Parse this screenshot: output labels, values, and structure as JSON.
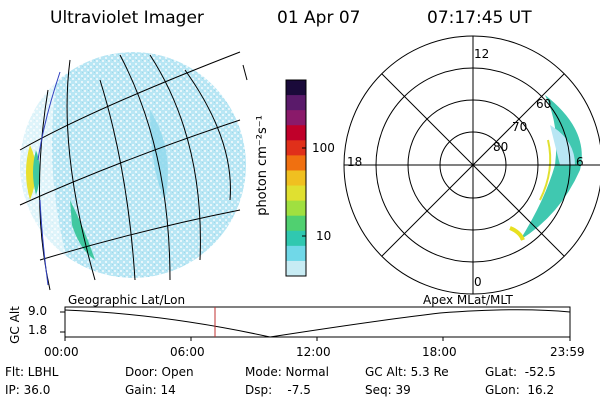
{
  "header": {
    "instrument": "Ultraviolet Imager",
    "date": "01 Apr 07",
    "time": "07:17:45 UT"
  },
  "colorbar": {
    "unit_label": "photon cm⁻²s⁻¹",
    "ticks": [
      "100",
      "10"
    ],
    "colors": [
      "#1a0a3a",
      "#5a1a6a",
      "#8a1a6a",
      "#c0002a",
      "#e0301a",
      "#f07010",
      "#f0c020",
      "#e0e030",
      "#a0e040",
      "#50d070",
      "#30c8b0",
      "#70d8e8",
      "#c8ecf4"
    ]
  },
  "polar": {
    "mlt_labels": {
      "top": "12",
      "left": "18",
      "right": "6",
      "bottom": "0"
    },
    "lat_labels": [
      "80",
      "70",
      "60"
    ]
  },
  "timeline": {
    "left_label": "Geographic Lat/Lon",
    "right_label": "Apex MLat/MLT",
    "y_axis_label": "GC Alt",
    "y_ticks": [
      "9.0",
      "1.8"
    ],
    "x_ticks": [
      "00:00",
      "06:00",
      "12:00",
      "18:00",
      "23:59"
    ],
    "cursor_color": "#c03030"
  },
  "info": {
    "flt": "Flt: LBHL",
    "ip": "IP: 36.0",
    "door": "Door: Open",
    "gain": "Gain: 14",
    "mode": "Mode: Normal",
    "dsp": "Dsp:    -7.5",
    "gcalt": "GC Alt: 5.3 Re",
    "seq": "Seq: 39",
    "glat": "GLat:  -52.5",
    "glon": "GLon:  16.2"
  }
}
